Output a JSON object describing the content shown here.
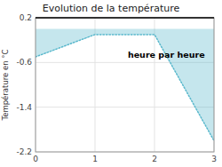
{
  "chart_data": {
    "type": "area",
    "title": "Evolution de la température",
    "y_label": "Température en °C",
    "annotation": "heure par heure",
    "x": [
      0,
      1,
      2,
      3
    ],
    "values": [
      -0.5,
      -0.1,
      -0.1,
      -2.0
    ],
    "xlim": [
      0,
      3
    ],
    "ylim": [
      -2.2,
      0.2
    ],
    "xticks": [
      0,
      1,
      2,
      3
    ],
    "yticks": [
      0.2,
      -0.6,
      -1.4,
      -2.2
    ],
    "color": "#5ab8cc",
    "line_style": "dotted",
    "grid": true
  }
}
